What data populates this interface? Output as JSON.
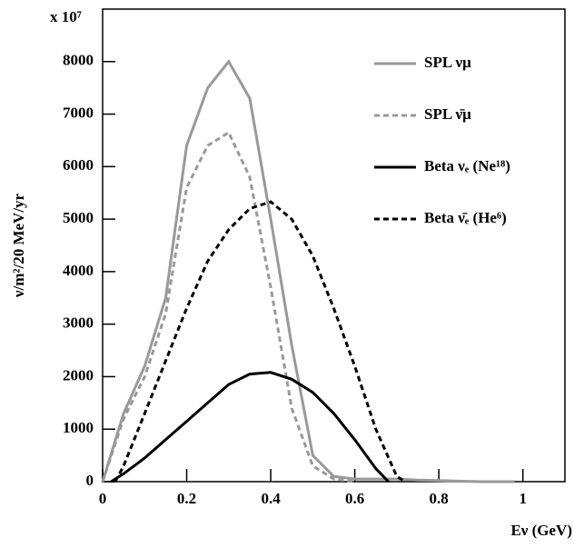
{
  "chart_data": {
    "type": "line",
    "y_multiplier": "x 10⁷",
    "y_label": "ν/m²/20 MeV/yr",
    "x_label": "Eν (GeV)",
    "xlim": [
      0,
      1.1
    ],
    "xticks": [
      0,
      0.2,
      0.4,
      0.6,
      0.8,
      1
    ],
    "ylim": [
      0,
      9000
    ],
    "yticks": [
      0,
      1000,
      2000,
      3000,
      4000,
      5000,
      6000,
      7000,
      8000
    ],
    "legend": "upper right",
    "series": [
      {
        "name": "SPL νμ",
        "color": "#999999",
        "dash": false,
        "x": [
          0,
          0.05,
          0.1,
          0.15,
          0.2,
          0.25,
          0.3,
          0.35,
          0.4,
          0.45,
          0.5,
          0.55,
          0.6,
          0.65,
          0.7,
          0.75,
          0.8,
          0.9,
          0.98
        ],
        "values": [
          0,
          1300,
          2200,
          3500,
          6400,
          7500,
          8000,
          7300,
          5000,
          2600,
          500,
          100,
          50,
          50,
          50,
          30,
          20,
          0,
          0
        ]
      },
      {
        "name": "SPL ν̄μ",
        "color": "#999999",
        "dash": true,
        "x": [
          0,
          0.05,
          0.1,
          0.15,
          0.2,
          0.25,
          0.3,
          0.35,
          0.4,
          0.45,
          0.5,
          0.55,
          0.6
        ],
        "values": [
          0,
          1200,
          2000,
          3200,
          5600,
          6400,
          6650,
          5800,
          3700,
          1400,
          300,
          50,
          0
        ]
      },
      {
        "name": "Beta νₑ (Ne¹⁸)",
        "color": "#000000",
        "dash": false,
        "x": [
          0.02,
          0.05,
          0.1,
          0.15,
          0.2,
          0.25,
          0.3,
          0.35,
          0.4,
          0.45,
          0.5,
          0.55,
          0.6,
          0.65,
          0.68
        ],
        "values": [
          0,
          150,
          450,
          800,
          1150,
          1500,
          1850,
          2050,
          2080,
          1950,
          1700,
          1300,
          800,
          250,
          0
        ]
      },
      {
        "name": "Beta ν̄ₑ (He⁶)",
        "color": "#000000",
        "dash": true,
        "x": [
          0.03,
          0.05,
          0.1,
          0.15,
          0.2,
          0.25,
          0.3,
          0.35,
          0.4,
          0.45,
          0.5,
          0.55,
          0.6,
          0.65,
          0.7,
          0.72
        ],
        "values": [
          0,
          300,
          1300,
          2300,
          3300,
          4200,
          4800,
          5200,
          5330,
          5000,
          4300,
          3300,
          2200,
          1000,
          100,
          0
        ]
      }
    ]
  }
}
